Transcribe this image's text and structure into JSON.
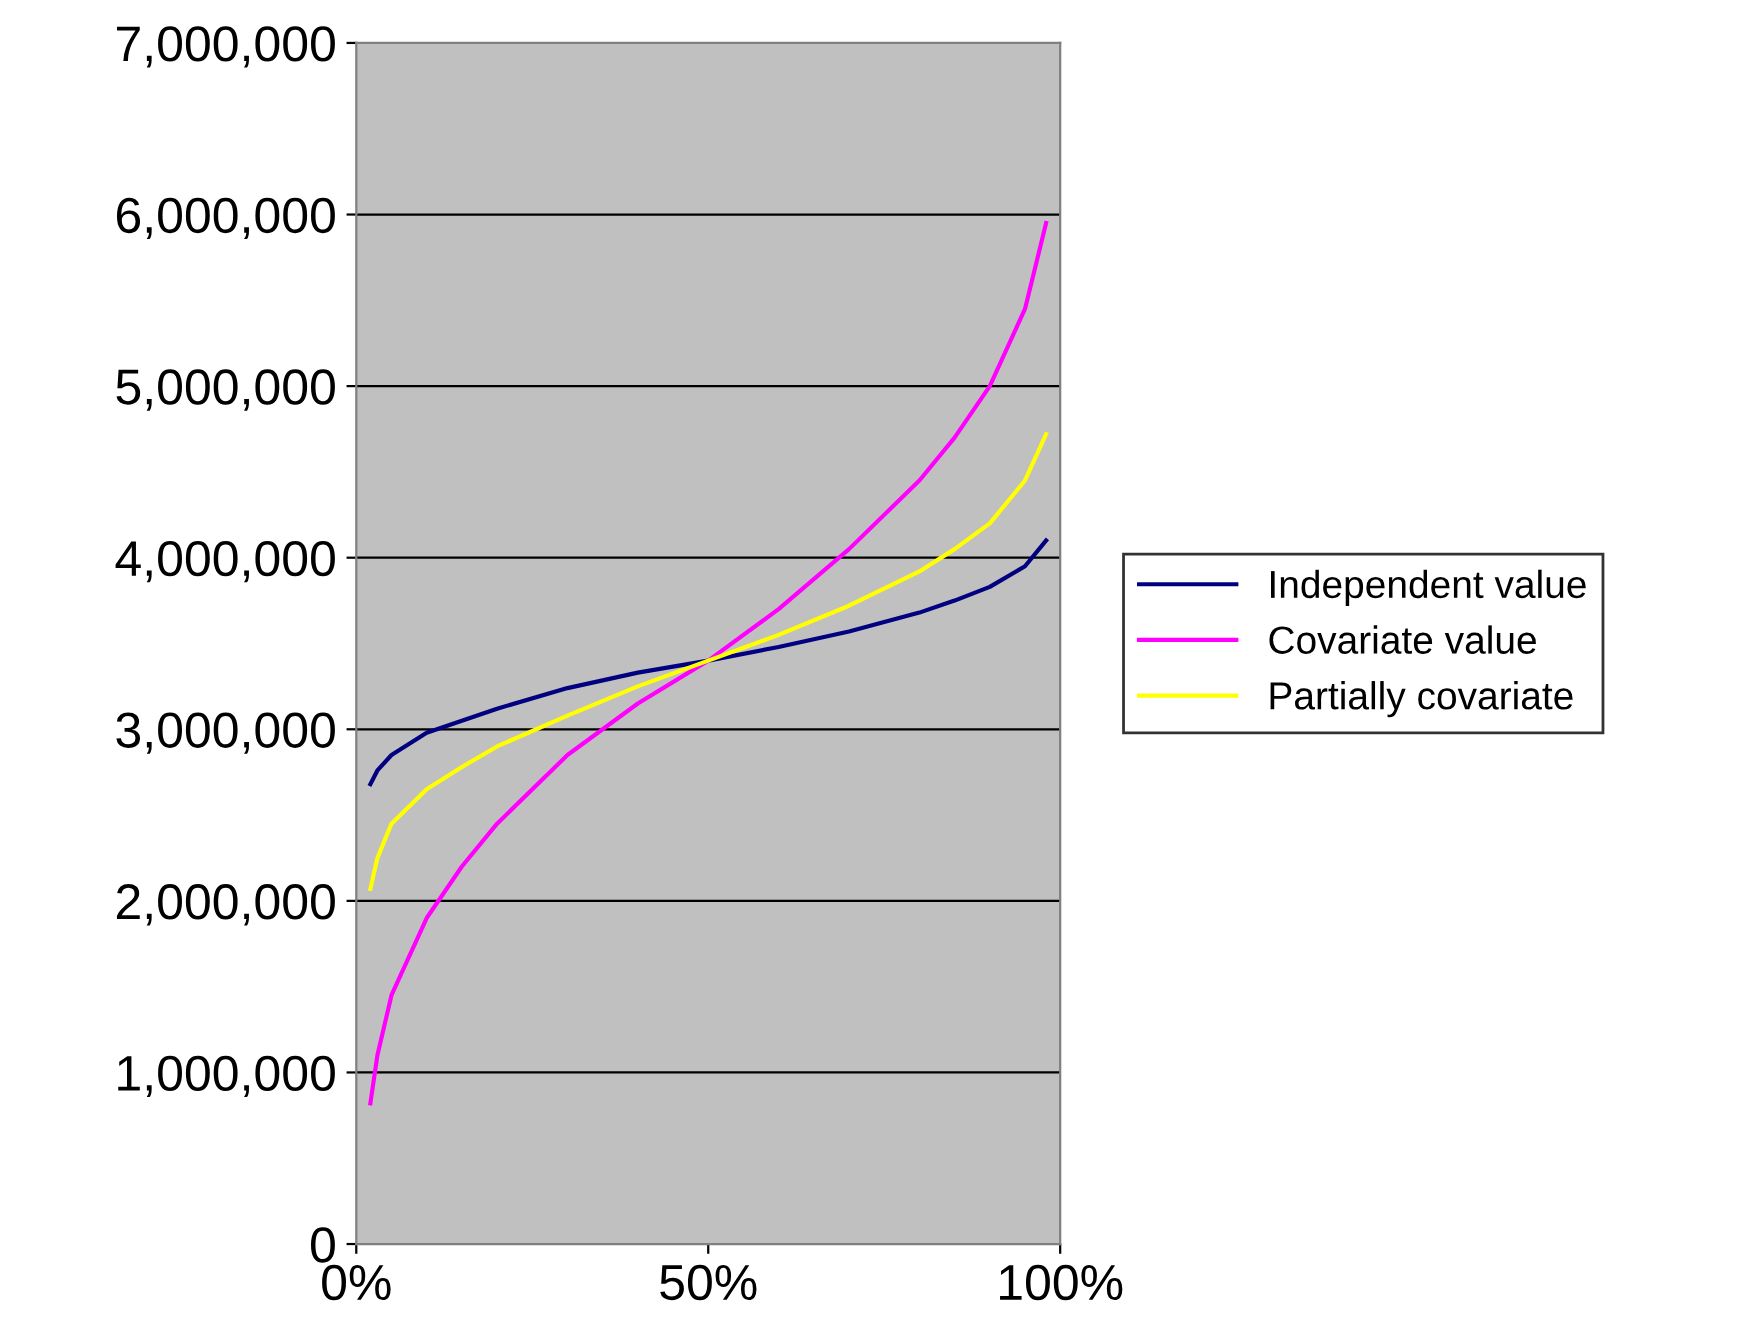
{
  "chart_data": {
    "type": "line",
    "x": [
      2,
      3,
      5,
      10,
      15,
      20,
      30,
      40,
      50,
      60,
      70,
      80,
      85,
      90,
      95,
      98
    ],
    "series": [
      {
        "name": "Independent value",
        "color": "#000080",
        "values": [
          2680000,
          2760000,
          2850000,
          2980000,
          3050000,
          3120000,
          3240000,
          3330000,
          3400000,
          3480000,
          3570000,
          3680000,
          3750000,
          3830000,
          3950000,
          4100000
        ]
      },
      {
        "name": "Covariate value",
        "color": "#ff00ff",
        "values": [
          820000,
          1100000,
          1450000,
          1900000,
          2200000,
          2450000,
          2850000,
          3150000,
          3400000,
          3700000,
          4050000,
          4450000,
          4700000,
          5000000,
          5450000,
          5950000
        ]
      },
      {
        "name": "Partially covariate",
        "color": "#ffff00",
        "values": [
          2070000,
          2250000,
          2450000,
          2650000,
          2780000,
          2900000,
          3080000,
          3250000,
          3400000,
          3550000,
          3720000,
          3920000,
          4050000,
          4200000,
          4450000,
          4720000
        ]
      }
    ],
    "xlim": [
      0,
      100
    ],
    "xticks": [
      {
        "value": 0,
        "label": "0%"
      },
      {
        "value": 50,
        "label": "50%"
      },
      {
        "value": 100,
        "label": "100%"
      }
    ],
    "ylim": [
      0,
      7000000
    ],
    "yticks": [
      {
        "value": 0,
        "label": "0"
      },
      {
        "value": 1000000,
        "label": "1,000,000"
      },
      {
        "value": 2000000,
        "label": "2,000,000"
      },
      {
        "value": 3000000,
        "label": "3,000,000"
      },
      {
        "value": 4000000,
        "label": "4,000,000"
      },
      {
        "value": 5000000,
        "label": "5,000,000"
      },
      {
        "value": 6000000,
        "label": "6,000,000"
      },
      {
        "value": 7000000,
        "label": "7,000,000"
      }
    ],
    "grid": "y",
    "legend": "right",
    "marker": "none",
    "line_style": "solid"
  }
}
